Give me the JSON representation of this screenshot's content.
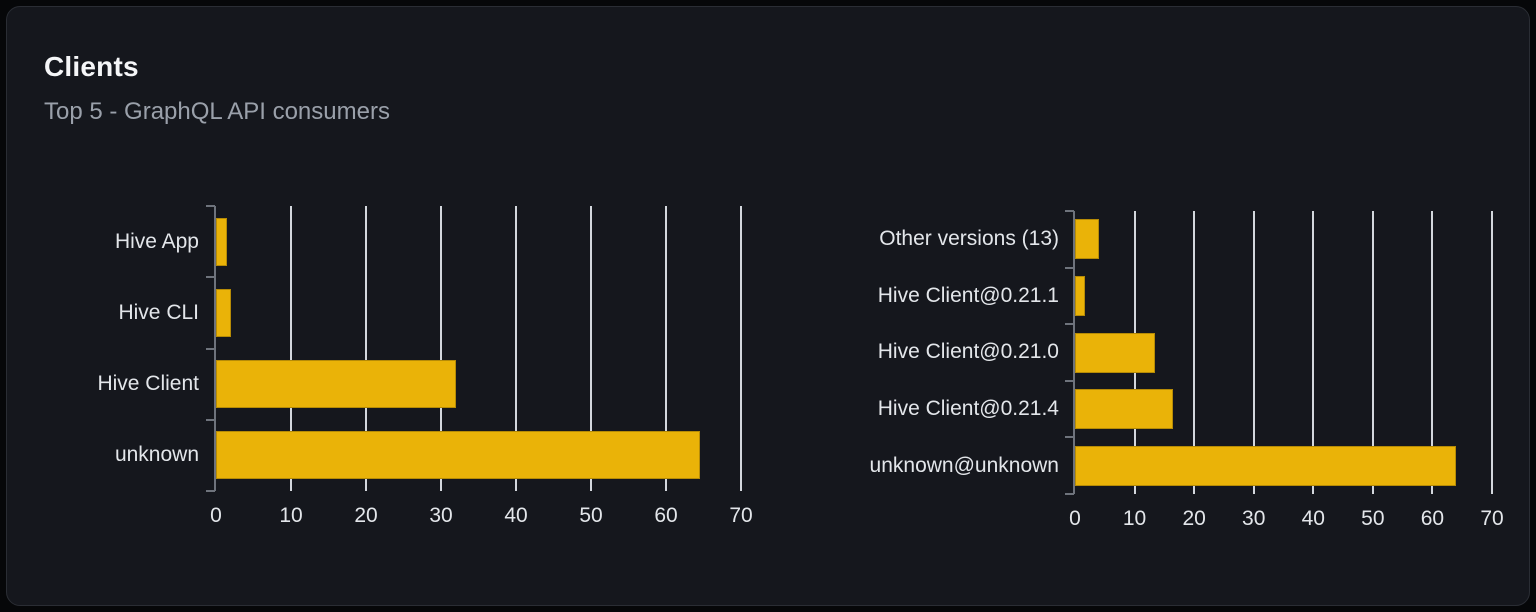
{
  "card": {
    "title": "Clients",
    "subtitle": "Top 5 - GraphQL API consumers"
  },
  "colors": {
    "page_bg": "#060709",
    "card_bg": "#15171d",
    "card_border": "#2a2d34",
    "title": "#f5f6f8",
    "subtitle": "#9aa0aa",
    "label": "#e3e6ea",
    "axis": "#6e737c",
    "grid": "#d3d7dd",
    "bar": "#eab308"
  },
  "chart_data": [
    {
      "type": "bar",
      "orientation": "horizontal",
      "title": "",
      "categories": [
        "Hive App",
        "Hive CLI",
        "Hive Client",
        "unknown"
      ],
      "values": [
        1.5,
        2,
        32,
        64.5
      ],
      "xlabel": "",
      "ylabel": "",
      "xlim": [
        0,
        70
      ],
      "xticks": [
        0,
        10,
        20,
        30,
        40,
        50,
        60,
        70
      ],
      "grid": true,
      "legend": false,
      "bar_color": "#eab308"
    },
    {
      "type": "bar",
      "orientation": "horizontal",
      "title": "",
      "categories": [
        "Other versions (13)",
        "Hive Client@0.21.1",
        "Hive Client@0.21.0",
        "Hive Client@0.21.4",
        "unknown@unknown"
      ],
      "values": [
        4,
        1.7,
        13.5,
        16.5,
        64
      ],
      "xlabel": "",
      "ylabel": "",
      "xlim": [
        0,
        70
      ],
      "xticks": [
        0,
        10,
        20,
        30,
        40,
        50,
        60,
        70
      ],
      "grid": true,
      "legend": false,
      "bar_color": "#eab308"
    }
  ]
}
